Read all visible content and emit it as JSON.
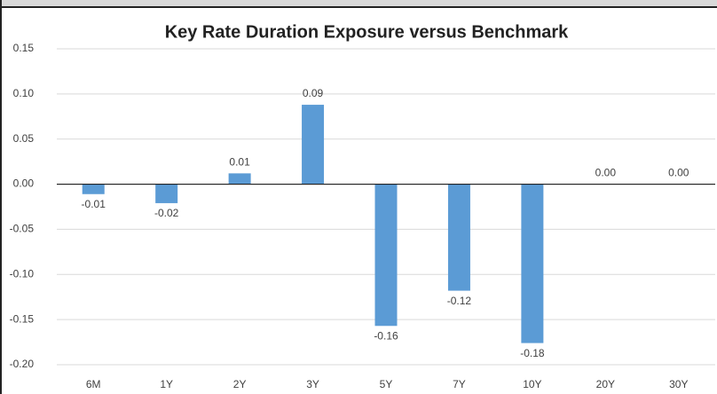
{
  "chart_data": {
    "type": "bar",
    "title": "Key Rate Duration Exposure versus Benchmark",
    "categories": [
      "6M",
      "1Y",
      "2Y",
      "3Y",
      "5Y",
      "7Y",
      "10Y",
      "20Y",
      "30Y"
    ],
    "values": [
      -0.011,
      -0.021,
      0.012,
      0.088,
      -0.157,
      -0.118,
      -0.176,
      0,
      0
    ],
    "value_labels": [
      "-0.01",
      "-0.02",
      "0.01",
      "0.09",
      "-0.16",
      "-0.12",
      "-0.18",
      "0.00",
      "0.00"
    ],
    "color": "#5b9bd5",
    "ylim": [
      -0.2,
      0.15
    ],
    "yticks": [
      {
        "value": -0.2,
        "label": "-0.20"
      },
      -0.15,
      {
        "value": -0.1,
        "label": "-0.10"
      },
      -0.05,
      {
        "value": 0,
        "label": "0.00"
      },
      0.05,
      {
        "value": 0.1,
        "label": "0.10"
      },
      0.15
    ],
    "grid": true
  }
}
